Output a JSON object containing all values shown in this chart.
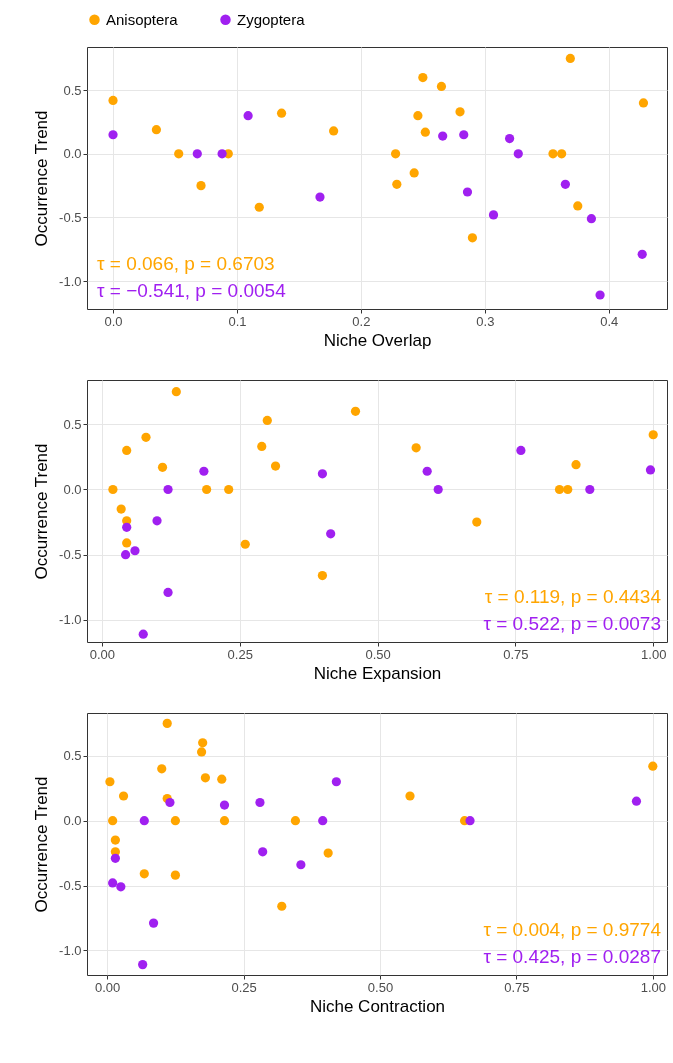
{
  "chart_data": [
    {
      "type": "scatter",
      "xlabel": "Niche Overlap",
      "ylabel": "Occurrence Trend",
      "xlim": [
        -0.021,
        0.447
      ],
      "ylim": [
        -1.22,
        0.84
      ],
      "xticks": [
        {
          "value": 0,
          "label": "0.0"
        },
        {
          "value": 0.1,
          "label": "0.1"
        },
        {
          "value": 0.2,
          "label": "0.2"
        },
        {
          "value": 0.3,
          "label": "0.3"
        },
        {
          "value": 0.4,
          "label": "0.4"
        }
      ],
      "yticks": [
        {
          "value": -1,
          "label": "-1.0"
        },
        {
          "value": -0.5,
          "label": "-0.5"
        },
        {
          "value": 0,
          "label": "0.0"
        },
        {
          "value": 0.5,
          "label": "0.5"
        }
      ],
      "grid": true,
      "legend": "top",
      "marker": "circle",
      "annotations": [
        "τ = 0.066, p = 0.6703",
        "τ = −0.541, p = 0.0054"
      ],
      "series": [
        {
          "name": "Anisoptera",
          "color": "#ffa500",
          "x": [
            0,
            0.035,
            0.053,
            0.071,
            0.093,
            0.118,
            0.136,
            0.178,
            0.228,
            0.229,
            0.243,
            0.246,
            0.25,
            0.252,
            0.265,
            0.28,
            0.29,
            0.355,
            0.362,
            0.369,
            0.375,
            0.428
          ],
          "values": [
            0.42,
            0.19,
            0,
            -0.25,
            0,
            -0.42,
            0.32,
            0.18,
            0,
            -0.24,
            -0.15,
            0.3,
            0.6,
            0.17,
            0.53,
            0.33,
            -0.66,
            0,
            0,
            0.75,
            -0.41,
            0.4
          ]
        },
        {
          "name": "Zygoptera",
          "color": "#a020f0",
          "x": [
            0,
            0.068,
            0.088,
            0.109,
            0.167,
            0.266,
            0.283,
            0.286,
            0.307,
            0.32,
            0.327,
            0.365,
            0.386,
            0.393,
            0.427
          ],
          "values": [
            0.15,
            0,
            0,
            0.3,
            -0.34,
            0.14,
            0.15,
            -0.3,
            -0.48,
            0.12,
            0,
            -0.24,
            -0.51,
            -1.11,
            -0.79
          ]
        }
      ]
    },
    {
      "type": "scatter",
      "xlabel": "Niche Expansion",
      "ylabel": "Occurrence Trend",
      "xlim": [
        -0.027,
        1.025
      ],
      "ylim": [
        -1.17,
        0.84
      ],
      "xticks": [
        {
          "value": 0,
          "label": "0.00"
        },
        {
          "value": 0.25,
          "label": "0.25"
        },
        {
          "value": 0.5,
          "label": "0.50"
        },
        {
          "value": 0.75,
          "label": "0.75"
        },
        {
          "value": 1,
          "label": "1.00"
        }
      ],
      "yticks": [
        {
          "value": -1,
          "label": "-1.0"
        },
        {
          "value": -0.5,
          "label": "-0.5"
        },
        {
          "value": 0,
          "label": "0.0"
        },
        {
          "value": 0.5,
          "label": "0.5"
        }
      ],
      "grid": true,
      "marker": "circle",
      "annotations": [
        "τ = 0.119, p = 0.4434",
        "τ = 0.522, p = 0.0073"
      ],
      "series": [
        {
          "name": "Anisoptera",
          "color": "#ffa500",
          "x": [
            0.02,
            0.035,
            0.045,
            0.045,
            0.045,
            0.08,
            0.11,
            0.135,
            0.19,
            0.23,
            0.26,
            0.29,
            0.3,
            0.315,
            0.4,
            0.46,
            0.57,
            0.68,
            0.83,
            0.845,
            0.86,
            1.0
          ],
          "values": [
            0,
            -0.15,
            0.3,
            -0.24,
            -0.41,
            0.4,
            0.17,
            0.75,
            0,
            0,
            -0.42,
            0.33,
            0.53,
            0.18,
            -0.66,
            0.6,
            0.32,
            -0.25,
            0,
            0,
            0.19,
            0.42
          ]
        },
        {
          "name": "Zygoptera",
          "color": "#a020f0",
          "x": [
            0.045,
            0.043,
            0.06,
            0.075,
            0.1,
            0.12,
            0.12,
            0.185,
            0.4,
            0.415,
            0.59,
            0.61,
            0.76,
            0.885,
            0.995
          ],
          "values": [
            -0.29,
            -0.5,
            -0.47,
            -1.11,
            -0.24,
            0,
            -0.79,
            0.14,
            0.12,
            -0.34,
            0.14,
            0,
            0.3,
            0,
            0.15
          ]
        }
      ]
    },
    {
      "type": "scatter",
      "xlabel": "Niche Contraction",
      "ylabel": "Occurrence Trend",
      "xlim": [
        -0.037,
        1.026
      ],
      "ylim": [
        -1.19,
        0.83
      ],
      "xticks": [
        {
          "value": 0,
          "label": "0.00"
        },
        {
          "value": 0.25,
          "label": "0.25"
        },
        {
          "value": 0.5,
          "label": "0.50"
        },
        {
          "value": 0.75,
          "label": "0.75"
        },
        {
          "value": 1,
          "label": "1.00"
        }
      ],
      "yticks": [
        {
          "value": -1,
          "label": "-1.0"
        },
        {
          "value": -0.5,
          "label": "-0.5"
        },
        {
          "value": 0,
          "label": "0.0"
        },
        {
          "value": 0.5,
          "label": "0.5"
        }
      ],
      "grid": true,
      "marker": "circle",
      "annotations": [
        "τ = 0.004, p = 0.9774",
        "τ = 0.425, p = 0.0287"
      ],
      "series": [
        {
          "name": "Anisoptera",
          "color": "#ffa500",
          "x": [
            0.005,
            0.01,
            0.015,
            0.015,
            0.03,
            0.068,
            0.1,
            0.11,
            0.11,
            0.125,
            0.125,
            0.175,
            0.173,
            0.18,
            0.21,
            0.215,
            0.32,
            0.345,
            0.405,
            0.555,
            0.655,
            1.0
          ],
          "values": [
            0.3,
            0,
            -0.15,
            -0.24,
            0.19,
            -0.41,
            0.4,
            0.75,
            0.17,
            -0.42,
            0,
            0.6,
            0.53,
            0.33,
            0.32,
            0,
            -0.66,
            0,
            -0.25,
            0.19,
            0,
            0.42
          ]
        },
        {
          "name": "Zygoptera",
          "color": "#a020f0",
          "x": [
            0.01,
            0.015,
            0.025,
            0.068,
            0.085,
            0.065,
            0.115,
            0.215,
            0.28,
            0.285,
            0.355,
            0.395,
            0.42,
            0.665,
            0.97
          ],
          "values": [
            -0.48,
            -0.29,
            -0.51,
            0,
            -0.79,
            -1.11,
            0.14,
            0.12,
            0.14,
            -0.24,
            -0.34,
            0,
            0.3,
            0,
            0.15
          ]
        }
      ]
    }
  ]
}
